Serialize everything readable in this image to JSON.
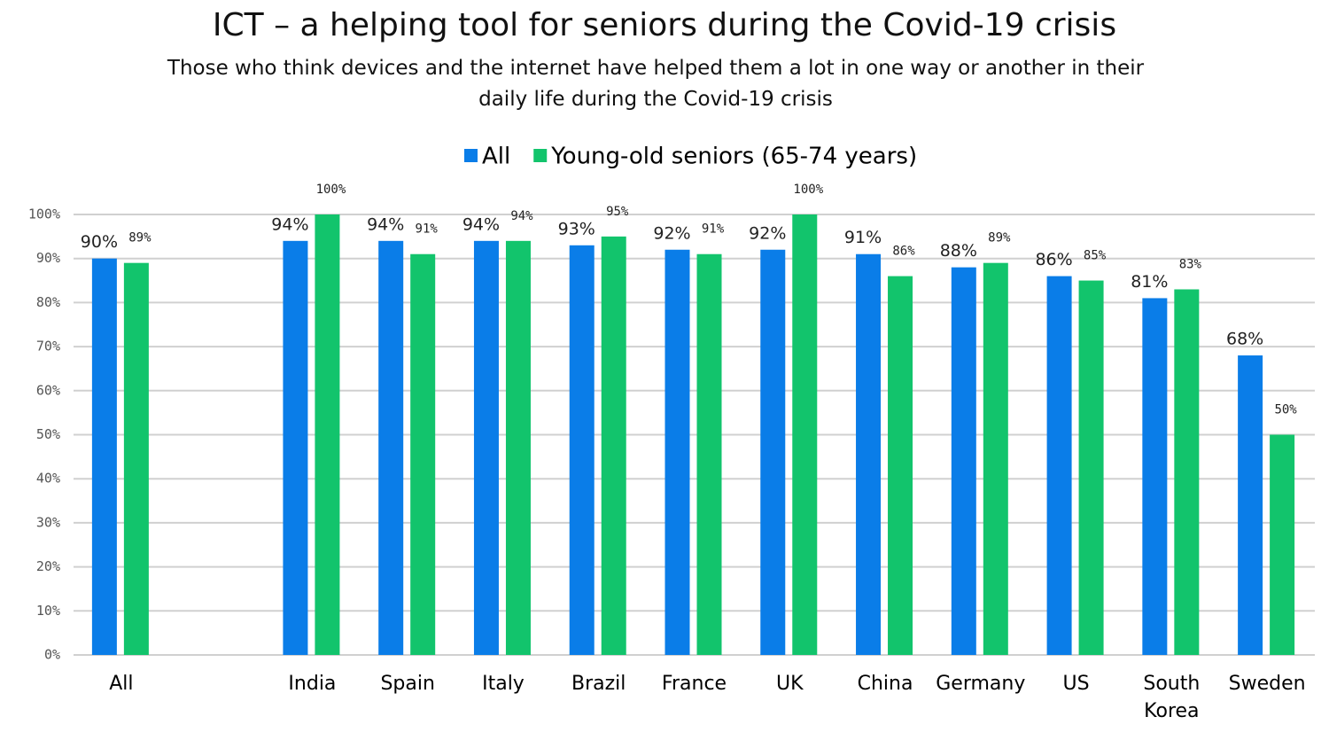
{
  "chart_data": {
    "type": "bar",
    "title": "ICT – a helping tool for seniors during the Covid-19 crisis",
    "subtitle": "Those who think devices and the internet have helped them a lot in one way or another in their daily life during the Covid-19 crisis",
    "categories": [
      "All",
      null,
      "India",
      "Spain",
      "Italy",
      "Brazil",
      "France",
      "UK",
      "China",
      "Germany",
      "US",
      "South Korea",
      "Sweden"
    ],
    "series": [
      {
        "name": "All",
        "color": "#0a7de8",
        "values": [
          90,
          null,
          94,
          94,
          94,
          93,
          92,
          92,
          91,
          88,
          86,
          81,
          68
        ],
        "value_labels": [
          "90%",
          null,
          "94%",
          "94%",
          "94%",
          "93%",
          "92%",
          "92%",
          "91%",
          "88%",
          "86%",
          "81%",
          "68%"
        ]
      },
      {
        "name": "Young-old seniors (65-74 years)",
        "color": "#12c46c",
        "values": [
          89,
          null,
          100,
          91,
          94,
          95,
          91,
          100,
          86,
          89,
          85,
          83,
          50
        ],
        "value_labels": [
          "89%",
          null,
          "100%",
          "91%",
          "94%",
          "95%",
          "91%",
          "100%",
          "86%",
          "89%",
          "85%",
          "83%",
          "50%"
        ]
      }
    ],
    "ylim": [
      0,
      100
    ],
    "yticks": [
      {
        "value": 0,
        "label": "0%"
      },
      {
        "value": 10,
        "label": "10%"
      },
      {
        "value": 20,
        "label": "20%"
      },
      {
        "value": 30,
        "label": "30%"
      },
      {
        "value": 40,
        "label": "40%"
      },
      {
        "value": 50,
        "label": "50%"
      },
      {
        "value": 60,
        "label": "60%"
      },
      {
        "value": 70,
        "label": "70%"
      },
      {
        "value": 80,
        "label": "80%"
      },
      {
        "value": 90,
        "label": "90%"
      },
      {
        "value": 100,
        "label": "100%"
      }
    ],
    "grid": true
  }
}
